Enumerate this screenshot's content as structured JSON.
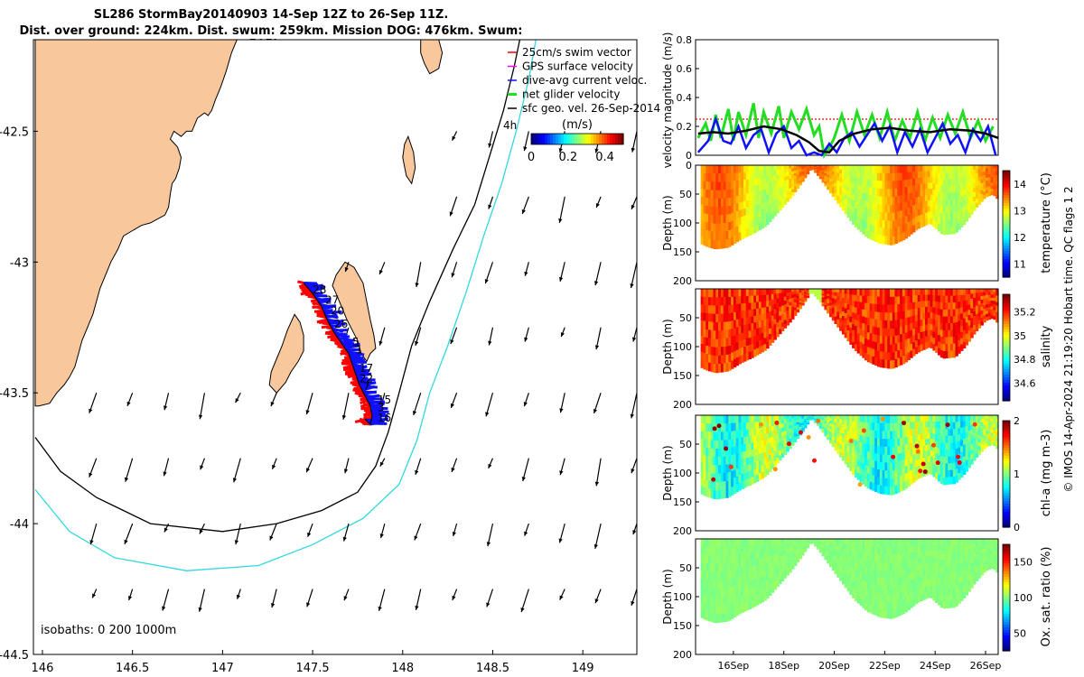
{
  "header": {
    "title_line1": "SL286 StormBay20140903 14-Sep 12Z to 26-Sep 11Z.",
    "title_line2": "Dist. over ground: 224km. Dist. swum: 259km. Mission DOG: 476km. Swum: 505km"
  },
  "credit": "© IMOS 14-Apr-2024 21:19:20 Hobart time. QC flags 1  2",
  "colors": {
    "land": "#f8c89c",
    "iso200": "#000000",
    "iso1000": "#30d8e0",
    "track_red": "#ff0000",
    "track_blue": "#1010ff",
    "glider_green": "#22dd22"
  },
  "chart_data": [
    {
      "type": "map",
      "name": "map",
      "xlabel": "",
      "ylabel": "",
      "xlim": [
        145.95,
        149.3
      ],
      "ylim": [
        -44.5,
        -42.15
      ],
      "xticks": [
        146,
        146.5,
        147,
        147.5,
        148,
        148.5,
        149
      ],
      "xtick_labels": [
        "146",
        "146.5",
        "147",
        "147.5",
        "148",
        "148.5",
        "149"
      ],
      "yticks": [
        -42.5,
        -43,
        -43.5,
        -44,
        -44.5
      ],
      "ytick_labels": [
        "-42.5",
        "-43",
        "-43.5",
        "-44",
        "-44.5"
      ],
      "legend": {
        "placement": "top-right",
        "items": [
          {
            "label": "25cm/s swim vector",
            "color": "#ff0000"
          },
          {
            "label": "GPS surface velocity",
            "color": "#ff00ff"
          },
          {
            "label": "dive-avg current veloc.",
            "color": "#1010ff"
          },
          {
            "label": "net glider velocity",
            "color": "#22dd22"
          },
          {
            "label": "sfc geo. vel. 26-Sep-2014",
            "color": "#000000"
          }
        ],
        "extra_label": "4h",
        "colorbar": {
          "title": "(m/s)",
          "ticks": [
            0,
            0.2,
            0.4
          ],
          "tick_labels": [
            "0",
            "0.2",
            "0.4"
          ],
          "range": [
            0,
            0.5
          ]
        }
      },
      "isobaths_label": "isobaths: 0   200  1000m",
      "day_labels": [
        "28",
        "27",
        "20",
        "26",
        "5",
        "1",
        "17",
        "22",
        "7",
        "15",
        "3",
        "16"
      ],
      "day_label_positions": [
        [
          147.5,
          -43.12
        ],
        [
          147.57,
          -43.16
        ],
        [
          147.6,
          -43.2
        ],
        [
          147.62,
          -43.25
        ],
        [
          147.72,
          -43.32
        ],
        [
          147.74,
          -43.35
        ],
        [
          147.76,
          -43.42
        ],
        [
          147.76,
          -43.46
        ],
        [
          147.78,
          -43.49
        ],
        [
          147.86,
          -43.54
        ],
        [
          147.86,
          -43.57
        ],
        [
          147.86,
          -43.61
        ]
      ],
      "track": [
        [
          147.45,
          -43.08
        ],
        [
          147.5,
          -43.12
        ],
        [
          147.55,
          -43.17
        ],
        [
          147.58,
          -43.22
        ],
        [
          147.62,
          -43.27
        ],
        [
          147.66,
          -43.31
        ],
        [
          147.7,
          -43.35
        ],
        [
          147.72,
          -43.39
        ],
        [
          147.74,
          -43.43
        ],
        [
          147.76,
          -43.47
        ],
        [
          147.79,
          -43.51
        ],
        [
          147.82,
          -43.55
        ],
        [
          147.83,
          -43.59
        ],
        [
          147.82,
          -43.62
        ],
        [
          147.79,
          -43.6
        ]
      ],
      "vector_field": {
        "lons": [
          146.3,
          146.5,
          146.7,
          146.9,
          147.1,
          147.3,
          147.5,
          147.7,
          147.9,
          148.1,
          148.3,
          148.5,
          148.7,
          148.9,
          149.1,
          149.3
        ],
        "lats": [
          -42.5,
          -42.75,
          -43.0,
          -43.25,
          -43.5,
          -43.75,
          -44.0,
          -44.25,
          -44.5
        ],
        "max_arrow_deg": 0.09
      },
      "coast_main": [
        [
          145.96,
          -42.15
        ],
        [
          147.08,
          -42.15
        ],
        [
          147.05,
          -42.2
        ],
        [
          147.02,
          -42.27
        ],
        [
          146.99,
          -42.33
        ],
        [
          146.96,
          -42.38
        ],
        [
          146.94,
          -42.42
        ],
        [
          146.92,
          -42.44
        ],
        [
          146.9,
          -42.43
        ],
        [
          146.86,
          -42.45
        ],
        [
          146.83,
          -42.5
        ],
        [
          146.8,
          -42.5
        ],
        [
          146.77,
          -42.52
        ],
        [
          146.73,
          -42.5
        ],
        [
          146.71,
          -42.53
        ],
        [
          146.75,
          -42.56
        ],
        [
          146.77,
          -42.6
        ],
        [
          146.76,
          -42.64
        ],
        [
          146.74,
          -42.68
        ],
        [
          146.72,
          -42.7
        ],
        [
          146.71,
          -42.74
        ],
        [
          146.7,
          -42.79
        ],
        [
          146.68,
          -42.82
        ],
        [
          146.6,
          -42.85
        ],
        [
          146.55,
          -42.86
        ],
        [
          146.5,
          -42.88
        ],
        [
          146.45,
          -42.9
        ],
        [
          146.42,
          -42.95
        ],
        [
          146.38,
          -43.0
        ],
        [
          146.35,
          -43.05
        ],
        [
          146.32,
          -43.1
        ],
        [
          146.3,
          -43.15
        ],
        [
          146.28,
          -43.2
        ],
        [
          146.25,
          -43.25
        ],
        [
          146.22,
          -43.3
        ],
        [
          146.2,
          -43.35
        ],
        [
          146.18,
          -43.4
        ],
        [
          146.15,
          -43.44
        ],
        [
          146.12,
          -43.47
        ],
        [
          146.08,
          -43.5
        ],
        [
          146.04,
          -43.54
        ],
        [
          145.98,
          -43.55
        ],
        [
          145.96,
          -43.55
        ]
      ],
      "coast_pen": [
        [
          147.63,
          -43.05
        ],
        [
          147.68,
          -43.0
        ],
        [
          147.73,
          -43.02
        ],
        [
          147.78,
          -43.08
        ],
        [
          147.8,
          -43.15
        ],
        [
          147.82,
          -43.22
        ],
        [
          147.84,
          -43.28
        ],
        [
          147.85,
          -43.33
        ],
        [
          147.82,
          -43.35
        ],
        [
          147.8,
          -43.38
        ],
        [
          147.77,
          -43.35
        ],
        [
          147.75,
          -43.3
        ],
        [
          147.72,
          -43.26
        ],
        [
          147.69,
          -43.22
        ],
        [
          147.66,
          -43.17
        ],
        [
          147.63,
          -43.12
        ],
        [
          147.61,
          -43.09
        ]
      ],
      "coast_bruny": [
        [
          147.4,
          -43.2
        ],
        [
          147.43,
          -43.23
        ],
        [
          147.45,
          -43.28
        ],
        [
          147.45,
          -43.34
        ],
        [
          147.42,
          -43.38
        ],
        [
          147.38,
          -43.42
        ],
        [
          147.35,
          -43.46
        ],
        [
          147.3,
          -43.5
        ],
        [
          147.26,
          -43.47
        ],
        [
          147.27,
          -43.42
        ],
        [
          147.3,
          -43.37
        ],
        [
          147.33,
          -43.32
        ],
        [
          147.36,
          -43.26
        ]
      ],
      "coast_maria": [
        [
          148.03,
          -42.52
        ],
        [
          148.06,
          -42.58
        ],
        [
          148.07,
          -42.64
        ],
        [
          148.05,
          -42.7
        ],
        [
          148.02,
          -42.67
        ],
        [
          148.0,
          -42.6
        ],
        [
          148.01,
          -42.55
        ]
      ],
      "coast_freycinet": [
        [
          148.1,
          -42.15
        ],
        [
          148.2,
          -42.15
        ],
        [
          148.22,
          -42.2
        ],
        [
          148.2,
          -42.26
        ],
        [
          148.15,
          -42.28
        ],
        [
          148.12,
          -42.24
        ],
        [
          148.1,
          -42.2
        ]
      ],
      "iso200": [
        [
          145.96,
          -43.67
        ],
        [
          146.1,
          -43.8
        ],
        [
          146.3,
          -43.9
        ],
        [
          146.6,
          -44.0
        ],
        [
          147.0,
          -44.03
        ],
        [
          147.3,
          -44.0
        ],
        [
          147.55,
          -43.95
        ],
        [
          147.75,
          -43.88
        ],
        [
          147.85,
          -43.78
        ],
        [
          147.92,
          -43.65
        ],
        [
          147.98,
          -43.5
        ],
        [
          148.05,
          -43.32
        ],
        [
          148.15,
          -43.15
        ],
        [
          148.28,
          -42.95
        ],
        [
          148.4,
          -42.78
        ],
        [
          148.48,
          -42.6
        ],
        [
          148.56,
          -42.42
        ],
        [
          148.62,
          -42.25
        ],
        [
          148.65,
          -42.15
        ]
      ],
      "iso1000": [
        [
          145.96,
          -43.87
        ],
        [
          146.15,
          -44.03
        ],
        [
          146.4,
          -44.13
        ],
        [
          146.8,
          -44.18
        ],
        [
          147.2,
          -44.16
        ],
        [
          147.5,
          -44.08
        ],
        [
          147.78,
          -43.98
        ],
        [
          147.98,
          -43.85
        ],
        [
          148.08,
          -43.68
        ],
        [
          148.15,
          -43.5
        ],
        [
          148.25,
          -43.32
        ],
        [
          148.35,
          -43.12
        ],
        [
          148.45,
          -42.9
        ],
        [
          148.55,
          -42.7
        ],
        [
          148.63,
          -42.5
        ],
        [
          148.7,
          -42.3
        ],
        [
          148.74,
          -42.15
        ]
      ]
    },
    {
      "type": "line",
      "name": "velocity",
      "xlabel": "",
      "ylabel": "velocity magnitude (m/s)",
      "xlim": [
        14.5,
        26.5
      ],
      "ylim": [
        0,
        0.8
      ],
      "yticks": [
        0,
        0.2,
        0.4,
        0.6,
        0.8
      ],
      "ytick_labels": [
        "0",
        "0.2",
        "0.4",
        "0.6",
        "0.8"
      ],
      "reference_line": 0.25,
      "series": [
        {
          "color": "#22dd22",
          "x": [
            14.6,
            14.9,
            15.1,
            15.3,
            15.5,
            15.8,
            16.0,
            16.2,
            16.5,
            16.8,
            17.0,
            17.2,
            17.5,
            17.8,
            18.0,
            18.3,
            18.6,
            18.9,
            19.2,
            19.4,
            19.6,
            19.8,
            20.0,
            20.3,
            20.6,
            20.9,
            21.2,
            21.5,
            21.8,
            22.1,
            22.4,
            22.7,
            23.0,
            23.3,
            23.6,
            23.9,
            24.2,
            24.5,
            24.8,
            25.1,
            25.4,
            25.7,
            26.0,
            26.3
          ],
          "values": [
            0.12,
            0.22,
            0.1,
            0.28,
            0.12,
            0.32,
            0.1,
            0.3,
            0.14,
            0.36,
            0.12,
            0.3,
            0.15,
            0.34,
            0.12,
            0.3,
            0.18,
            0.32,
            0.14,
            0.2,
            0.0,
            0.05,
            0.12,
            0.28,
            0.1,
            0.3,
            0.14,
            0.28,
            0.12,
            0.3,
            0.1,
            0.24,
            0.12,
            0.3,
            0.1,
            0.26,
            0.12,
            0.28,
            0.15,
            0.3,
            0.12,
            0.24,
            0.1,
            0.2
          ]
        },
        {
          "color": "#1010ff",
          "x": [
            14.6,
            15.0,
            15.3,
            15.6,
            15.9,
            16.2,
            16.5,
            16.8,
            17.1,
            17.4,
            17.7,
            18.0,
            18.3,
            18.6,
            18.9,
            19.2,
            19.5,
            19.8,
            20.1,
            20.4,
            20.7,
            21.0,
            21.3,
            21.6,
            21.9,
            22.2,
            22.5,
            22.8,
            23.1,
            23.4,
            23.7,
            24.0,
            24.3,
            24.6,
            24.9,
            25.2,
            25.5,
            25.8,
            26.1,
            26.4
          ],
          "values": [
            0.02,
            0.1,
            0.25,
            0.1,
            0.08,
            0.2,
            0.05,
            0.14,
            0.18,
            0.02,
            0.15,
            0.2,
            0.05,
            0.1,
            0.0,
            0.02,
            0.0,
            0.08,
            0.02,
            0.12,
            0.16,
            0.06,
            0.14,
            0.22,
            0.1,
            0.2,
            0.02,
            0.16,
            0.06,
            0.18,
            0.02,
            0.12,
            0.22,
            0.08,
            0.14,
            0.02,
            0.18,
            0.1,
            0.2,
            0.0
          ]
        },
        {
          "color": "#000000",
          "x": [
            14.6,
            15.2,
            15.8,
            16.5,
            17.2,
            17.9,
            18.5,
            19.0,
            19.4,
            19.8,
            20.2,
            20.8,
            21.5,
            22.2,
            23.0,
            23.8,
            24.6,
            25.4,
            26.0,
            26.5
          ],
          "values": [
            0.15,
            0.16,
            0.15,
            0.17,
            0.2,
            0.18,
            0.14,
            0.09,
            0.03,
            0.02,
            0.1,
            0.15,
            0.18,
            0.19,
            0.17,
            0.16,
            0.18,
            0.17,
            0.15,
            0.12
          ]
        }
      ]
    },
    {
      "type": "heatmap",
      "name": "temperature",
      "ylabel": "Depth (m)",
      "cbar_label": "temperature (°C)",
      "ylim": [
        200,
        0
      ],
      "yticks": [
        0,
        50,
        100,
        150,
        200
      ],
      "ytick_labels": [
        "0",
        "50",
        "100",
        "150",
        "200"
      ],
      "clim": [
        10.5,
        14.5
      ],
      "cticks": [
        11,
        12,
        13,
        14
      ],
      "ctick_labels": [
        "11",
        "12",
        "13",
        "14"
      ],
      "colormap": "jet",
      "value_range": [
        12.5,
        13.8
      ]
    },
    {
      "type": "heatmap",
      "name": "salinity",
      "ylabel": "Depth (m)",
      "cbar_label": "salinity",
      "ylim": [
        200,
        0
      ],
      "yticks": [
        50,
        100,
        150,
        200
      ],
      "ytick_labels": [
        "50",
        "100",
        "150",
        "200"
      ],
      "clim": [
        34.45,
        35.35
      ],
      "cticks": [
        34.6,
        34.8,
        35,
        35.2
      ],
      "ctick_labels": [
        "34.6",
        "34.8",
        "35",
        "35.2"
      ],
      "colormap": "jet",
      "value_range": [
        35.05,
        35.3
      ]
    },
    {
      "type": "heatmap",
      "name": "chla",
      "ylabel": "Depth (m)",
      "cbar_label": "chl-a (mg m-3)",
      "ylim": [
        200,
        0
      ],
      "yticks": [
        50,
        100,
        150,
        200
      ],
      "ytick_labels": [
        "50",
        "100",
        "150",
        "200"
      ],
      "clim": [
        0,
        2
      ],
      "cticks": [
        0,
        1,
        2
      ],
      "ctick_labels": [
        "0",
        "1",
        "2"
      ],
      "colormap": "jet",
      "value_range": [
        0.5,
        1.3
      ]
    },
    {
      "type": "heatmap",
      "name": "oxygen",
      "ylabel": "Depth (m)",
      "cbar_label": "Ox. sat. ratio (%)",
      "xlabel": "",
      "ylim": [
        200,
        0
      ],
      "yticks": [
        50,
        100,
        150,
        200
      ],
      "ytick_labels": [
        "50",
        "100",
        "150",
        "200"
      ],
      "clim": [
        25,
        175
      ],
      "cticks": [
        50,
        100,
        150
      ],
      "ctick_labels": [
        "50",
        "100",
        "150"
      ],
      "colormap": "jet",
      "value_range": [
        95,
        105
      ],
      "xticks": [
        16,
        18,
        20,
        22,
        24,
        26
      ],
      "xtick_labels": [
        "16Sep",
        "18Sep",
        "20Sep",
        "22Sep",
        "24Sep",
        "26Sep"
      ]
    },
    {
      "type": "line",
      "name": "bathymetry",
      "xlim": [
        14.5,
        26.5
      ],
      "x": [
        14.5,
        14.9,
        15.3,
        15.8,
        16.3,
        16.8,
        17.3,
        17.8,
        18.3,
        18.8,
        19.1,
        19.4,
        19.8,
        20.3,
        20.8,
        21.3,
        21.8,
        22.3,
        22.8,
        23.3,
        23.8,
        24.3,
        24.8,
        25.2,
        25.6,
        26.0,
        26.3,
        26.5
      ],
      "values": [
        130,
        140,
        145,
        142,
        128,
        118,
        105,
        80,
        55,
        25,
        5,
        20,
        45,
        75,
        105,
        125,
        135,
        138,
        128,
        110,
        100,
        120,
        118,
        100,
        75,
        55,
        50,
        60
      ]
    }
  ]
}
